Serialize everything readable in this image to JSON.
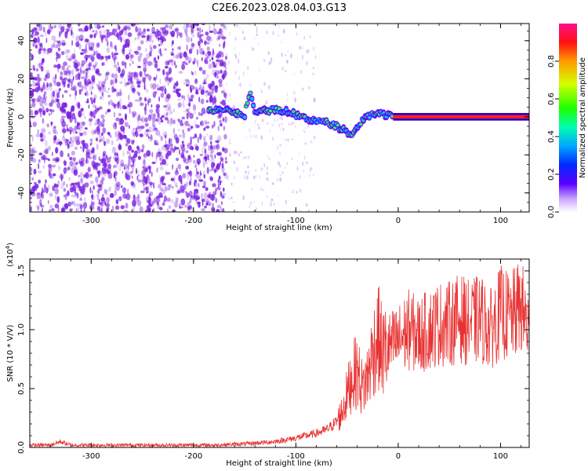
{
  "title": "C2E6.2023.028.04.03.G13",
  "colors": {
    "snr_line": "#e83232",
    "spectrogram_noise": "#7a1fe0",
    "background": "#ffffff"
  },
  "chart_data": [
    {
      "type": "heatmap",
      "name": "spectrogram",
      "xlabel": "Height of straight line (km)",
      "ylabel": "Frequency (Hz)",
      "xlim": [
        -360,
        128
      ],
      "ylim": [
        -50,
        49
      ],
      "xticks": [
        "-300",
        "-200",
        "-100",
        "0",
        "100"
      ],
      "yticks": [
        "-40",
        "-20",
        "0",
        "20",
        "40"
      ],
      "xtick_values": [
        -300,
        -200,
        -100,
        0,
        100
      ],
      "ytick_values": [
        -40,
        -20,
        0,
        20,
        40
      ],
      "grid": false,
      "signal_track": [
        {
          "x": -185,
          "f": 3
        },
        {
          "x": -170,
          "f": 4
        },
        {
          "x": -160,
          "f": 2
        },
        {
          "x": -150,
          "f": 1
        },
        {
          "x": -145,
          "f": 13
        },
        {
          "x": -140,
          "f": 2
        },
        {
          "x": -130,
          "f": 3
        },
        {
          "x": -120,
          "f": 4
        },
        {
          "x": -110,
          "f": 3
        },
        {
          "x": -100,
          "f": 1
        },
        {
          "x": -90,
          "f": -1
        },
        {
          "x": -80,
          "f": -2
        },
        {
          "x": -70,
          "f": -3
        },
        {
          "x": -60,
          "f": -5
        },
        {
          "x": -50,
          "f": -8
        },
        {
          "x": -45,
          "f": -10
        },
        {
          "x": -40,
          "f": -5
        },
        {
          "x": -35,
          "f": -2
        },
        {
          "x": -30,
          "f": 0
        },
        {
          "x": -20,
          "f": 2
        },
        {
          "x": -10,
          "f": 1
        },
        {
          "x": 0,
          "f": 0
        },
        {
          "x": 50,
          "f": 0
        },
        {
          "x": 128,
          "f": 0
        }
      ],
      "colorbar": {
        "label": "Normalized spectral amplitude",
        "ticks": [
          "0.0",
          "0.2",
          "0.4",
          "0.6",
          "0.8"
        ],
        "tick_values": [
          0.0,
          0.2,
          0.4,
          0.6,
          0.8
        ],
        "range": [
          0,
          1
        ]
      }
    },
    {
      "type": "line",
      "name": "snr",
      "xlabel": "Height of straight line (km)",
      "ylabel": "SNR (10 * V/V)",
      "scale_label": "(x10",
      "scale_exp": "4",
      "scale_close": ")",
      "xlim": [
        -360,
        128
      ],
      "ylim": [
        0,
        1.6
      ],
      "xticks": [
        "-300",
        "-200",
        "-100",
        "0",
        "100"
      ],
      "yticks": [
        "0.0",
        "0.5",
        "1.0",
        "1.5"
      ],
      "xtick_values": [
        -300,
        -200,
        -100,
        0,
        100
      ],
      "ytick_values": [
        0,
        0.5,
        1.0,
        1.5
      ],
      "grid": false,
      "x": [
        -360,
        -340,
        -330,
        -320,
        -300,
        -260,
        -220,
        -180,
        -150,
        -120,
        -100,
        -90,
        -80,
        -70,
        -60,
        -55,
        -50,
        -45,
        -40,
        -35,
        -30,
        -25,
        -20,
        -15,
        -10,
        0,
        10,
        20,
        30,
        40,
        50,
        60,
        70,
        80,
        90,
        100,
        110,
        120,
        128
      ],
      "y": [
        0.02,
        0.02,
        0.05,
        0.02,
        0.02,
        0.02,
        0.02,
        0.02,
        0.03,
        0.05,
        0.08,
        0.1,
        0.12,
        0.15,
        0.22,
        0.3,
        0.45,
        0.6,
        0.65,
        0.5,
        0.6,
        0.8,
        0.95,
        0.8,
        0.85,
        0.9,
        1.0,
        0.95,
        1.0,
        1.05,
        1.05,
        1.1,
        1.05,
        1.1,
        1.0,
        1.15,
        1.1,
        1.2,
        1.0
      ]
    }
  ]
}
